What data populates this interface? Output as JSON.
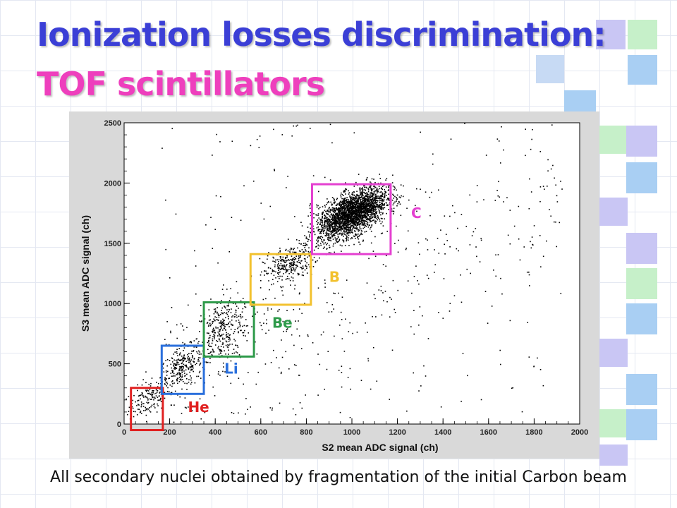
{
  "title": {
    "line1": "Ionization losses discrimination:",
    "line2": "TOF scintillators"
  },
  "caption": "All secondary nuclei obtained by fragmentation of the initial Carbon beam",
  "colors": {
    "title_line1": "#3b3fd6",
    "title_line2": "#ee3fbd",
    "He": "#e02020",
    "Li": "#2a6fdc",
    "Be": "#2e9a4a",
    "B": "#f2c12e",
    "C": "#e43fd0"
  },
  "chart_data": {
    "type": "scatter",
    "xlabel": "S2 mean ADC signal (ch)",
    "ylabel": "S3 mean ADC signal (ch)",
    "xlim": [
      0,
      2000
    ],
    "ylim": [
      0,
      2500
    ],
    "xticks": [
      0,
      200,
      400,
      600,
      800,
      1000,
      1200,
      1400,
      1600,
      1800,
      2000
    ],
    "yticks": [
      0,
      500,
      1000,
      1500,
      2000,
      2500
    ],
    "grid": false,
    "clusters": [
      {
        "name": "He",
        "x_center": 110,
        "y_center": 220,
        "x_range": [
          30,
          170
        ],
        "y_range": [
          -50,
          300
        ],
        "color": "#e02020",
        "label_at": [
          280,
          100
        ]
      },
      {
        "name": "Li",
        "x_center": 250,
        "y_center": 470,
        "x_range": [
          165,
          350
        ],
        "y_range": [
          250,
          650
        ],
        "color": "#2a6fdc",
        "label_at": [
          440,
          420
        ]
      },
      {
        "name": "Be",
        "x_center": 430,
        "y_center": 790,
        "x_range": [
          350,
          570
        ],
        "y_range": [
          560,
          1010
        ],
        "color": "#2e9a4a",
        "label_at": [
          650,
          800
        ]
      },
      {
        "name": "B",
        "x_center": 720,
        "y_center": 1330,
        "x_range": [
          555,
          820
        ],
        "y_range": [
          990,
          1410
        ],
        "color": "#f2c12e",
        "label_at": [
          900,
          1180
        ]
      },
      {
        "name": "C",
        "x_center": 1000,
        "y_center": 1750,
        "x_range": [
          825,
          1170
        ],
        "y_range": [
          1410,
          1990
        ],
        "color": "#e43fd0",
        "label_at": [
          1260,
          1710
        ]
      }
    ]
  }
}
